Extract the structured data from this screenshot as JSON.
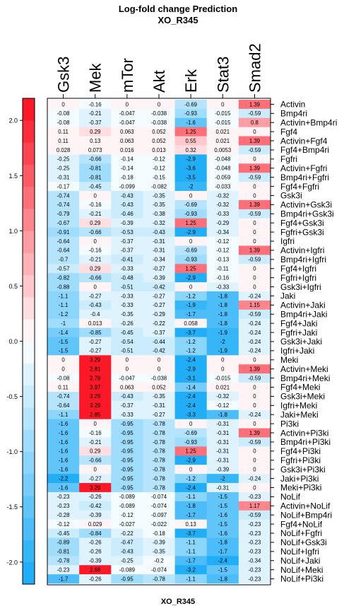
{
  "chart_data": {
    "type": "heatmap",
    "title": "Log-fold change Prediction",
    "subtitle": "XO_R345",
    "xlabel": "XO_R345",
    "colorbar": {
      "range": [
        -2.2,
        2.2
      ],
      "ticks": [
        "2.0",
        "1.5",
        "1.0",
        "0.5",
        "0.0",
        "-0.5",
        "-1.0",
        "-1.5",
        "-2.0"
      ],
      "tick_values": [
        2.0,
        1.5,
        1.0,
        0.5,
        0.0,
        -0.5,
        -1.0,
        -1.5,
        -2.0
      ],
      "low_color": "#17aaf6",
      "zero_color": "#ffffff",
      "high_color": "#fb0d1d"
    },
    "columns": [
      "Gsk3",
      "Mek",
      "mTor",
      "Akt",
      "Erk",
      "Stat3",
      "Smad2"
    ],
    "rows": [
      "Activin",
      "Bmp4ri",
      "Activin+Bmp4ri",
      "Fgf4",
      "Activin+Fgf4",
      "Fgf4+Bmp4ri",
      "Fgfri",
      "Activin+Fgfri",
      "Bmp4ri+Fgfri",
      "Fgf4+Fgfri",
      "Gsk3i",
      "Activin+Gsk3i",
      "Bmp4ri+Gsk3i",
      "Fgf4+Gsk3i",
      "Fgfri+Gsk3i",
      "Igfri",
      "Activin+Igfri",
      "Bmp4ri+Igfri",
      "Fgf4+Igfri",
      "Fgfri+Igfri",
      "Gsk3i+Igfri",
      "Jaki",
      "Activin+Jaki",
      "Bmp4ri+Jaki",
      "Fgf4+Jaki",
      "Fgfri+Jaki",
      "Gsk3i+Jaki",
      "Igfri+Jaki",
      "Meki",
      "Activin+Meki",
      "Bmp4ri+Meki",
      "Fgf4+Meki",
      "Gsk3i+Meki",
      "Igfri+Meki",
      "Jaki+Meki",
      "Pi3ki",
      "Activin+Pi3ki",
      "Bmp4ri+Pi3ki",
      "Fgf4+Pi3ki",
      "Fgfri+Pi3ki",
      "Gsk3i+Pi3ki",
      "Jaki+Pi3ki",
      "Meki+Pi3ki",
      "NoLif",
      "Activin+NoLif",
      "NoLif+Bmp4ri",
      "Fgf4+NoLif",
      "NoLif+Fgfri",
      "NoLif+Gsk3i",
      "NoLif+Igfri",
      "NoLif+Jaki",
      "NoLif+Meki",
      "NoLif+Pi3ki"
    ],
    "labels": [
      [
        "0",
        "-0.16",
        "0",
        "0",
        "-0.69",
        "0",
        "1.39"
      ],
      [
        "-0.08",
        "-0.21",
        "-0.047",
        "-0.038",
        "-0.93",
        "-0.015",
        "-0.59"
      ],
      [
        "-0.08",
        "-0.37",
        "-0.047",
        "-0.038",
        "-1.6",
        "-0.015",
        "0.8"
      ],
      [
        "0.11",
        "0.29",
        "0.063",
        "0.052",
        "1.25",
        "0.021",
        "0"
      ],
      [
        "0.11",
        "0.13",
        "0.063",
        "0.052",
        "0.55",
        "0.021",
        "1.39"
      ],
      [
        "0.028",
        "0.073",
        "0.016",
        "0.013",
        "0.32",
        "0.0053",
        "-0.59"
      ],
      [
        "-0.25",
        "-0.66",
        "-0.14",
        "-0.12",
        "-2.9",
        "-0.048",
        "0"
      ],
      [
        "-0.25",
        "-0.81",
        "-0.14",
        "-0.12",
        "-3.6",
        "-0.048",
        "1.39"
      ],
      [
        "-0.31",
        "-0.81",
        "-0.18",
        "-0.15",
        "-3.5",
        "-0.059",
        "-0.59"
      ],
      [
        "-0.17",
        "-0.45",
        "-0.099",
        "-0.082",
        "-2",
        "-0.033",
        "0"
      ],
      [
        "-0.74",
        "0",
        "-0.43",
        "-0.35",
        "0",
        "-0.32",
        "0"
      ],
      [
        "-0.74",
        "-0.16",
        "-0.43",
        "-0.35",
        "-0.69",
        "-0.32",
        "1.39"
      ],
      [
        "-0.79",
        "-0.21",
        "-0.46",
        "-0.38",
        "-0.93",
        "-0.33",
        "-0.59"
      ],
      [
        "-0.67",
        "0.29",
        "-0.39",
        "-0.32",
        "1.25",
        "-0.29",
        "0"
      ],
      [
        "-0.91",
        "-0.66",
        "-0.53",
        "-0.43",
        "-2.9",
        "-0.34",
        "0"
      ],
      [
        "-0.64",
        "0",
        "-0.37",
        "-0.31",
        "0",
        "-0.12",
        "0"
      ],
      [
        "-0.64",
        "-0.16",
        "-0.37",
        "-0.31",
        "-0.69",
        "-0.12",
        "1.39"
      ],
      [
        "-0.7",
        "-0.21",
        "-0.41",
        "-0.34",
        "-0.93",
        "-0.13",
        "-0.59"
      ],
      [
        "-0.57",
        "0.29",
        "-0.33",
        "-0.27",
        "1.25",
        "-0.11",
        "0"
      ],
      [
        "-0.82",
        "-0.66",
        "-0.48",
        "-0.39",
        "-2.9",
        "-0.16",
        "0"
      ],
      [
        "-0.88",
        "0",
        "-0.51",
        "-0.42",
        "0",
        "-0.33",
        "0"
      ],
      [
        "-1.1",
        "-0.27",
        "-0.33",
        "-0.27",
        "-1.2",
        "-1.8",
        "-0.24"
      ],
      [
        "-1.1",
        "-0.43",
        "-0.33",
        "-0.27",
        "-1.9",
        "-1.8",
        "1.15"
      ],
      [
        "-1.2",
        "-0.4",
        "-0.35",
        "-0.29",
        "-1.7",
        "-1.8",
        "-0.59"
      ],
      [
        "-1",
        "0.013",
        "-0.26",
        "-0.22",
        "0.058",
        "-1.8",
        "-0.24"
      ],
      [
        "-1.4",
        "-0.85",
        "-0.45",
        "-0.37",
        "-3.7",
        "-1.9",
        "-0.24"
      ],
      [
        "-1.5",
        "-0.27",
        "-0.54",
        "-0.44",
        "-1.2",
        "-2",
        "-0.24"
      ],
      [
        "-1.5",
        "-0.27",
        "-0.51",
        "-0.42",
        "-1.2",
        "-1.9",
        "-0.24"
      ],
      [
        "0",
        "3.29",
        "0",
        "0",
        "-2.4",
        "0",
        "0"
      ],
      [
        "0",
        "2.81",
        "0",
        "0",
        "-2.9",
        "0",
        "1.39"
      ],
      [
        "-0.08",
        "2.78",
        "-0.047",
        "-0.038",
        "-3.1",
        "-0.015",
        "-0.59"
      ],
      [
        "0.11",
        "3.97",
        "0.063",
        "0.052",
        "-1.4",
        "0.021",
        "0"
      ],
      [
        "-0.74",
        "3.29",
        "-0.43",
        "-0.35",
        "-2.4",
        "-0.32",
        "0"
      ],
      [
        "-0.64",
        "3.29",
        "-0.37",
        "-0.31",
        "-2.4",
        "-0.12",
        "0"
      ],
      [
        "-1.1",
        "2.85",
        "-0.33",
        "-0.27",
        "-3.3",
        "-1.8",
        "-0.24"
      ],
      [
        "-1.6",
        "0",
        "-0.95",
        "-0.78",
        "0",
        "-0.31",
        "0"
      ],
      [
        "-1.6",
        "-0.16",
        "-0.95",
        "-0.78",
        "-0.69",
        "-0.31",
        "1.39"
      ],
      [
        "-1.6",
        "-0.21",
        "-0.95",
        "-0.78",
        "-0.93",
        "-0.31",
        "-0.59"
      ],
      [
        "-1.6",
        "0.29",
        "-0.95",
        "-0.78",
        "1.25",
        "-0.31",
        "0"
      ],
      [
        "-1.6",
        "-0.66",
        "-0.95",
        "-0.78",
        "-2.9",
        "-0.31",
        "0"
      ],
      [
        "-1.6",
        "0",
        "-0.95",
        "-0.78",
        "0",
        "-0.39",
        "0"
      ],
      [
        "-2.2",
        "-0.27",
        "-0.95",
        "-0.78",
        "-1.2",
        "-2",
        "-0.24"
      ],
      [
        "-1.6",
        "3.29",
        "-0.95",
        "-0.78",
        "-2.4",
        "-0.31",
        "0"
      ],
      [
        "-0.23",
        "-0.26",
        "-0.089",
        "-0.074",
        "-1.1",
        "-1.5",
        "-0.23"
      ],
      [
        "-0.23",
        "-0.42",
        "-0.089",
        "-0.074",
        "-1.8",
        "-1.5",
        "1.17"
      ],
      [
        "-0.28",
        "-0.39",
        "-0.12",
        "-0.097",
        "-1.7",
        "-1.6",
        "-0.59"
      ],
      [
        "-0.12",
        "0.029",
        "-0.027",
        "-0.022",
        "0.13",
        "-1.5",
        "-0.23"
      ],
      [
        "-0.45",
        "-0.84",
        "-0.22",
        "-0.18",
        "-3.7",
        "-1.6",
        "-0.23"
      ],
      [
        "-0.89",
        "-0.26",
        "-0.47",
        "-0.39",
        "-1.1",
        "-1.8",
        "-0.23"
      ],
      [
        "-0.81",
        "-0.26",
        "-0.43",
        "-0.35",
        "-1.1",
        "-1.7",
        "-0.23"
      ],
      [
        "-0.78",
        "-0.39",
        "-0.25",
        "-0.2",
        "-1.7",
        "-2.4",
        "-0.34"
      ],
      [
        "-0.23",
        "2.68",
        "-0.089",
        "-0.074",
        "-3.2",
        "-1.5",
        "-0.23"
      ],
      [
        "-1.7",
        "-0.26",
        "-0.95",
        "-0.78",
        "-1.1",
        "-1.8",
        "-0.23"
      ]
    ]
  }
}
